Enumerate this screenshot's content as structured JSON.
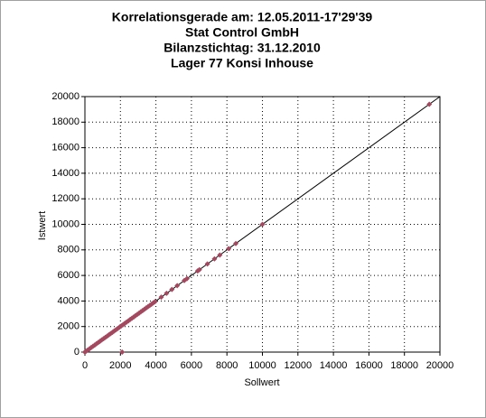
{
  "chart_data": {
    "type": "scatter",
    "title": "Korrelationsgerade am: 12.05.2011-17'29'39",
    "subtitles": [
      "Stat Control GmbH",
      "Bilanzstichtag: 31.12.2010",
      "Lager 77 Konsi Inhouse"
    ],
    "x_label": "Sollwert",
    "y_label": "Istwert",
    "xlim": [
      0,
      20000
    ],
    "ylim": [
      0,
      20000
    ],
    "xticks": [
      0,
      2000,
      4000,
      6000,
      8000,
      10000,
      12000,
      14000,
      16000,
      18000,
      20000
    ],
    "yticks": [
      0,
      2000,
      4000,
      6000,
      8000,
      10000,
      12000,
      14000,
      16000,
      18000,
      20000
    ],
    "grid": true,
    "color": "#a3485e",
    "line_color": "#000000",
    "x": [
      0,
      50,
      150,
      250,
      350,
      450,
      550,
      650,
      750,
      850,
      950,
      1050,
      1150,
      1250,
      1350,
      1450,
      1550,
      1650,
      1750,
      1850,
      1950,
      2050,
      2150,
      2250,
      2350,
      2450,
      2550,
      2650,
      2750,
      2850,
      2950,
      3050,
      3150,
      3250,
      3350,
      3450,
      3550,
      3650,
      3750,
      3850,
      3950,
      4300,
      4600,
      4900,
      5200,
      5600,
      5750,
      6350,
      6450,
      6900,
      7300,
      7600,
      8100,
      8500,
      10000,
      19400,
      2100
    ],
    "y": [
      0,
      50,
      150,
      250,
      350,
      450,
      550,
      650,
      750,
      850,
      950,
      1050,
      1150,
      1250,
      1350,
      1450,
      1550,
      1650,
      1750,
      1850,
      1950,
      2050,
      2150,
      2250,
      2350,
      2450,
      2550,
      2650,
      2750,
      2850,
      2950,
      3050,
      3150,
      3250,
      3350,
      3450,
      3550,
      3650,
      3750,
      3850,
      3950,
      4300,
      4600,
      4900,
      5200,
      5600,
      5750,
      6350,
      6450,
      6900,
      7300,
      7600,
      8100,
      8500,
      10000,
      19400,
      0
    ],
    "fit_line": {
      "x": [
        0,
        20000
      ],
      "y": [
        0,
        20000
      ]
    }
  }
}
